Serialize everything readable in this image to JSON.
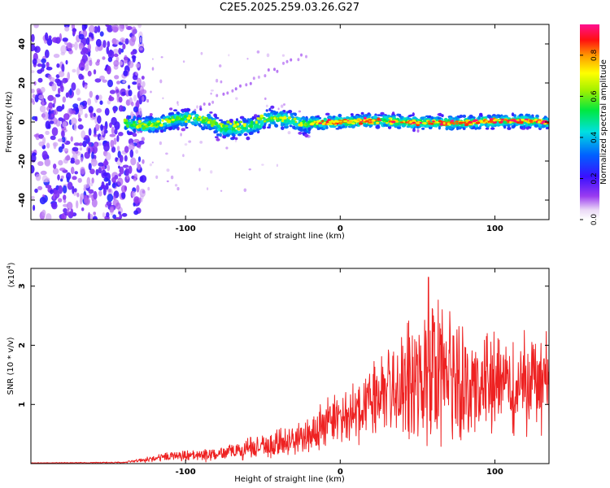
{
  "title": "C2E5.2025.259.03.26.G27",
  "chart_data": [
    {
      "type": "heatmap",
      "xlabel": "Height of straight line (km)",
      "ylabel": "Frequency (Hz)",
      "xlim": [
        -200,
        135
      ],
      "ylim": [
        -50,
        50
      ],
      "x_ticks": [
        -100,
        0,
        100
      ],
      "y_ticks": [
        -40,
        -20,
        0,
        20,
        40
      ],
      "colorbar": {
        "label": "Normalized spectral amplitude",
        "range": [
          0.0,
          0.95
        ],
        "ticks": [
          0.0,
          0.2,
          0.4,
          0.6,
          0.8
        ],
        "colormap": "rainbow (violet-blue-cyan-green-yellow-red-magenta)"
      },
      "features": {
        "noise_region_x": [
          -200,
          -135
        ],
        "signal_band_center_hz": 0,
        "signal_band_halfwidth_hz": 4,
        "strong_signal_start_x": -20
      }
    },
    {
      "type": "line",
      "xlabel": "Height of straight line (km)",
      "ylabel": "SNR (10 * v/v)",
      "y_multiplier": "(x10",
      "y_multiplier_exp": "4",
      "y_multiplier_close": ")",
      "xlim": [
        -200,
        135
      ],
      "ylim": [
        0,
        3.3
      ],
      "x_ticks": [
        -100,
        0,
        100
      ],
      "y_ticks": [
        1,
        2,
        3
      ],
      "color": "#ee2222",
      "envelope": {
        "x": [
          -200,
          -140,
          -125,
          -110,
          -90,
          -75,
          -60,
          -45,
          -30,
          -20,
          -10,
          0,
          10,
          20,
          30,
          40,
          50,
          60,
          70,
          80,
          90,
          100,
          110,
          120,
          135
        ],
        "mid": [
          0.01,
          0.02,
          0.07,
          0.12,
          0.14,
          0.18,
          0.26,
          0.3,
          0.38,
          0.5,
          0.65,
          0.8,
          0.95,
          1.1,
          1.2,
          1.3,
          1.45,
          1.5,
          1.45,
          1.4,
          1.35,
          1.4,
          1.35,
          1.35,
          1.4
        ],
        "amp": [
          0.005,
          0.01,
          0.05,
          0.08,
          0.1,
          0.12,
          0.18,
          0.22,
          0.28,
          0.32,
          0.4,
          0.45,
          0.55,
          0.65,
          0.75,
          0.9,
          1.1,
          1.2,
          1.1,
          1.0,
          0.9,
          0.85,
          0.8,
          0.8,
          0.85
        ]
      },
      "peak": {
        "x": 57,
        "y": 3.15
      }
    }
  ]
}
